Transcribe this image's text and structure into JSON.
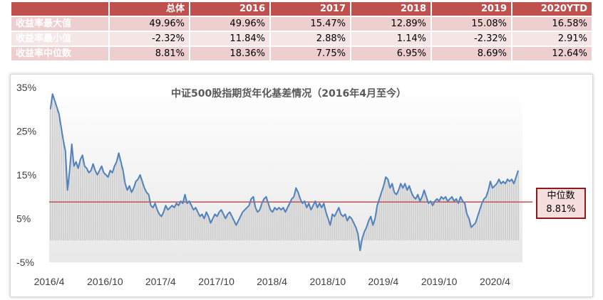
{
  "table": {
    "headers": [
      "总体",
      "2016",
      "2017",
      "2018",
      "2019",
      "2020YTD"
    ],
    "rows": [
      {
        "label": "收益率最大值",
        "values": [
          "49.96%",
          "49.96%",
          "15.47%",
          "12.89%",
          "15.08%",
          "16.58%"
        ]
      },
      {
        "label": "收益率最小值",
        "values": [
          "-2.32%",
          "11.84%",
          "2.88%",
          "1.14%",
          "-2.32%",
          "2.91%"
        ]
      },
      {
        "label": "收益率中位数",
        "values": [
          "8.81%",
          "18.36%",
          "7.75%",
          "6.95%",
          "8.69%",
          "12.64%"
        ]
      }
    ]
  },
  "chart_data": {
    "type": "area",
    "title": "中证500股指期货年化基差情况（2016年4月至今）",
    "x_tick_labels": [
      "2016/4",
      "2016/10",
      "2017/4",
      "2017/10",
      "2018/4",
      "2018/10",
      "2019/4",
      "2019/10",
      "2020/4"
    ],
    "x_tick_dates": [
      "2016-04",
      "2016-10",
      "2017-04",
      "2017-10",
      "2018-04",
      "2018-10",
      "2019-04",
      "2019-10",
      "2020-04"
    ],
    "ylim": [
      -5,
      35
    ],
    "y_ticks": [
      -5,
      5,
      15,
      25,
      35
    ],
    "y_tick_labels": [
      "-5%",
      "5%",
      "15%",
      "25%",
      "35%"
    ],
    "median": 8.81,
    "median_label": "中位数",
    "median_value_label": "8.81%",
    "series": [
      {
        "values": [
          [
            "2016-04-05",
            30.0
          ],
          [
            "2016-04-12",
            33.5
          ],
          [
            "2016-04-19",
            32.0
          ],
          [
            "2016-04-26",
            30.5
          ],
          [
            "2016-05-03",
            29.0
          ],
          [
            "2016-05-10",
            26.0
          ],
          [
            "2016-05-17",
            23.0
          ],
          [
            "2016-05-24",
            20.5
          ],
          [
            "2016-05-31",
            11.5
          ],
          [
            "2016-06-07",
            16.0
          ],
          [
            "2016-06-14",
            22.0
          ],
          [
            "2016-06-21",
            17.0
          ],
          [
            "2016-06-28",
            18.0
          ],
          [
            "2016-07-05",
            16.5
          ],
          [
            "2016-07-12",
            18.5
          ],
          [
            "2016-07-19",
            19.5
          ],
          [
            "2016-07-26",
            17.0
          ],
          [
            "2016-08-02",
            16.5
          ],
          [
            "2016-08-09",
            15.5
          ],
          [
            "2016-08-16",
            16.0
          ],
          [
            "2016-08-23",
            17.5
          ],
          [
            "2016-08-30",
            16.0
          ],
          [
            "2016-09-06",
            15.0
          ],
          [
            "2016-09-13",
            16.0
          ],
          [
            "2016-09-20",
            17.0
          ],
          [
            "2016-09-27",
            15.5
          ],
          [
            "2016-10-04",
            15.0
          ],
          [
            "2016-10-11",
            14.5
          ],
          [
            "2016-10-18",
            16.0
          ],
          [
            "2016-10-25",
            15.5
          ],
          [
            "2016-11-01",
            17.0
          ],
          [
            "2016-11-08",
            18.0
          ],
          [
            "2016-11-15",
            20.0
          ],
          [
            "2016-11-22",
            18.0
          ],
          [
            "2016-11-29",
            16.0
          ],
          [
            "2016-12-06",
            13.0
          ],
          [
            "2016-12-13",
            11.5
          ],
          [
            "2016-12-20",
            12.5
          ],
          [
            "2016-12-27",
            11.0
          ],
          [
            "2017-01-03",
            12.0
          ],
          [
            "2017-01-10",
            13.5
          ],
          [
            "2017-01-17",
            14.0
          ],
          [
            "2017-01-24",
            15.0
          ],
          [
            "2017-01-31",
            13.5
          ],
          [
            "2017-02-07",
            12.0
          ],
          [
            "2017-02-14",
            11.0
          ],
          [
            "2017-02-21",
            10.5
          ],
          [
            "2017-02-28",
            8.0
          ],
          [
            "2017-03-07",
            7.5
          ],
          [
            "2017-03-14",
            8.5
          ],
          [
            "2017-03-21",
            7.0
          ],
          [
            "2017-03-28",
            6.0
          ],
          [
            "2017-04-04",
            5.5
          ],
          [
            "2017-04-11",
            6.5
          ],
          [
            "2017-04-18",
            8.0
          ],
          [
            "2017-04-25",
            7.0
          ],
          [
            "2017-05-02",
            7.5
          ],
          [
            "2017-05-09",
            8.0
          ],
          [
            "2017-05-16",
            7.5
          ],
          [
            "2017-05-23",
            8.5
          ],
          [
            "2017-05-30",
            8.0
          ],
          [
            "2017-06-06",
            9.0
          ],
          [
            "2017-06-13",
            8.5
          ],
          [
            "2017-06-20",
            10.5
          ],
          [
            "2017-06-27",
            8.5
          ],
          [
            "2017-07-04",
            9.0
          ],
          [
            "2017-07-11",
            8.0
          ],
          [
            "2017-07-18",
            7.0
          ],
          [
            "2017-07-25",
            7.5
          ],
          [
            "2017-08-01",
            6.5
          ],
          [
            "2017-08-08",
            5.5
          ],
          [
            "2017-08-15",
            6.0
          ],
          [
            "2017-08-22",
            5.0
          ],
          [
            "2017-08-29",
            6.5
          ],
          [
            "2017-09-05",
            5.5
          ],
          [
            "2017-09-12",
            4.0
          ],
          [
            "2017-09-19",
            5.0
          ],
          [
            "2017-09-26",
            6.0
          ],
          [
            "2017-10-03",
            5.5
          ],
          [
            "2017-10-10",
            6.5
          ],
          [
            "2017-10-17",
            7.0
          ],
          [
            "2017-10-24",
            6.0
          ],
          [
            "2017-10-31",
            5.0
          ],
          [
            "2017-11-07",
            6.0
          ],
          [
            "2017-11-14",
            6.5
          ],
          [
            "2017-11-21",
            5.5
          ],
          [
            "2017-11-28",
            4.5
          ],
          [
            "2017-12-05",
            3.5
          ],
          [
            "2017-12-12",
            4.5
          ],
          [
            "2017-12-19",
            5.5
          ],
          [
            "2017-12-26",
            6.5
          ],
          [
            "2018-01-02",
            7.0
          ],
          [
            "2018-01-09",
            7.5
          ],
          [
            "2018-01-16",
            8.0
          ],
          [
            "2018-01-23",
            9.5
          ],
          [
            "2018-01-30",
            10.0
          ],
          [
            "2018-02-06",
            7.5
          ],
          [
            "2018-02-13",
            6.5
          ],
          [
            "2018-02-20",
            7.0
          ],
          [
            "2018-02-27",
            8.5
          ],
          [
            "2018-03-06",
            9.5
          ],
          [
            "2018-03-13",
            10.0
          ],
          [
            "2018-03-20",
            8.5
          ],
          [
            "2018-03-27",
            7.0
          ],
          [
            "2018-04-03",
            6.5
          ],
          [
            "2018-04-10",
            7.5
          ],
          [
            "2018-04-17",
            7.0
          ],
          [
            "2018-04-24",
            7.5
          ],
          [
            "2018-05-01",
            7.0
          ],
          [
            "2018-05-08",
            7.5
          ],
          [
            "2018-05-15",
            6.5
          ],
          [
            "2018-05-22",
            7.5
          ],
          [
            "2018-05-29",
            8.5
          ],
          [
            "2018-06-05",
            9.5
          ],
          [
            "2018-06-12",
            10.0
          ],
          [
            "2018-06-19",
            12.0
          ],
          [
            "2018-06-26",
            11.0
          ],
          [
            "2018-07-03",
            9.5
          ],
          [
            "2018-07-10",
            8.5
          ],
          [
            "2018-07-17",
            9.0
          ],
          [
            "2018-07-24",
            7.5
          ],
          [
            "2018-07-31",
            8.5
          ],
          [
            "2018-08-07",
            7.0
          ],
          [
            "2018-08-14",
            8.0
          ],
          [
            "2018-08-21",
            9.0
          ],
          [
            "2018-08-28",
            7.5
          ],
          [
            "2018-09-04",
            8.5
          ],
          [
            "2018-09-11",
            7.5
          ],
          [
            "2018-09-18",
            8.5
          ],
          [
            "2018-09-25",
            6.5
          ],
          [
            "2018-10-02",
            5.0
          ],
          [
            "2018-10-09",
            3.5
          ],
          [
            "2018-10-16",
            6.0
          ],
          [
            "2018-10-23",
            5.5
          ],
          [
            "2018-10-30",
            6.5
          ],
          [
            "2018-11-06",
            7.5
          ],
          [
            "2018-11-13",
            6.0
          ],
          [
            "2018-11-20",
            5.5
          ],
          [
            "2018-11-27",
            6.0
          ],
          [
            "2018-12-04",
            4.5
          ],
          [
            "2018-12-11",
            5.5
          ],
          [
            "2018-12-18",
            5.0
          ],
          [
            "2018-12-25",
            4.0
          ],
          [
            "2019-01-01",
            3.0
          ],
          [
            "2019-01-08",
            1.5
          ],
          [
            "2019-01-15",
            -2.3
          ],
          [
            "2019-01-22",
            0.5
          ],
          [
            "2019-01-29",
            2.0
          ],
          [
            "2019-02-05",
            3.0
          ],
          [
            "2019-02-12",
            4.5
          ],
          [
            "2019-02-19",
            5.5
          ],
          [
            "2019-02-26",
            3.5
          ],
          [
            "2019-03-05",
            5.0
          ],
          [
            "2019-03-12",
            8.0
          ],
          [
            "2019-03-19",
            9.5
          ],
          [
            "2019-03-26",
            11.0
          ],
          [
            "2019-04-02",
            12.5
          ],
          [
            "2019-04-09",
            14.5
          ],
          [
            "2019-04-16",
            14.0
          ],
          [
            "2019-04-23",
            12.0
          ],
          [
            "2019-04-30",
            13.0
          ],
          [
            "2019-05-07",
            11.0
          ],
          [
            "2019-05-14",
            10.5
          ],
          [
            "2019-05-21",
            11.5
          ],
          [
            "2019-05-28",
            13.0
          ],
          [
            "2019-06-04",
            12.0
          ],
          [
            "2019-06-11",
            13.0
          ],
          [
            "2019-06-18",
            11.5
          ],
          [
            "2019-06-25",
            12.5
          ],
          [
            "2019-07-02",
            11.0
          ],
          [
            "2019-07-09",
            10.0
          ],
          [
            "2019-07-16",
            9.5
          ],
          [
            "2019-07-23",
            10.5
          ],
          [
            "2019-07-30",
            9.0
          ],
          [
            "2019-08-06",
            10.0
          ],
          [
            "2019-08-13",
            11.5
          ],
          [
            "2019-08-20",
            10.0
          ],
          [
            "2019-08-27",
            8.5
          ],
          [
            "2019-09-03",
            9.0
          ],
          [
            "2019-09-10",
            8.0
          ],
          [
            "2019-09-17",
            9.0
          ],
          [
            "2019-09-24",
            9.5
          ],
          [
            "2019-10-01",
            9.0
          ],
          [
            "2019-10-08",
            10.0
          ],
          [
            "2019-10-15",
            9.5
          ],
          [
            "2019-10-22",
            10.0
          ],
          [
            "2019-10-29",
            9.0
          ],
          [
            "2019-11-05",
            9.5
          ],
          [
            "2019-11-12",
            10.0
          ],
          [
            "2019-11-19",
            9.0
          ],
          [
            "2019-11-26",
            9.5
          ],
          [
            "2019-12-03",
            8.5
          ],
          [
            "2019-12-10",
            10.0
          ],
          [
            "2019-12-17",
            9.0
          ],
          [
            "2019-12-24",
            8.5
          ],
          [
            "2019-12-31",
            6.0
          ],
          [
            "2020-01-07",
            5.0
          ],
          [
            "2020-01-14",
            3.0
          ],
          [
            "2020-01-21",
            3.5
          ],
          [
            "2020-01-28",
            4.0
          ],
          [
            "2020-02-04",
            5.5
          ],
          [
            "2020-02-11",
            7.0
          ],
          [
            "2020-02-18",
            8.5
          ],
          [
            "2020-02-25",
            9.5
          ],
          [
            "2020-03-03",
            10.0
          ],
          [
            "2020-03-10",
            11.5
          ],
          [
            "2020-03-17",
            13.5
          ],
          [
            "2020-03-24",
            12.0
          ],
          [
            "2020-03-31",
            12.5
          ],
          [
            "2020-04-07",
            13.0
          ],
          [
            "2020-04-14",
            14.0
          ],
          [
            "2020-04-21",
            13.0
          ],
          [
            "2020-04-28",
            13.5
          ],
          [
            "2020-05-05",
            13.0
          ],
          [
            "2020-05-12",
            14.0
          ],
          [
            "2020-05-19",
            13.5
          ],
          [
            "2020-05-26",
            14.0
          ],
          [
            "2020-06-02",
            13.0
          ],
          [
            "2020-06-09",
            14.5
          ],
          [
            "2020-06-16",
            16.0
          ]
        ]
      }
    ]
  },
  "colors": {
    "header_bg": "#c0504d",
    "row_bg_dark": "#eecfcf",
    "row_bg_light": "#f5e6e6",
    "line": "#4f81bd",
    "median_line": "#c0504d",
    "fill": "#d0d0d0"
  }
}
